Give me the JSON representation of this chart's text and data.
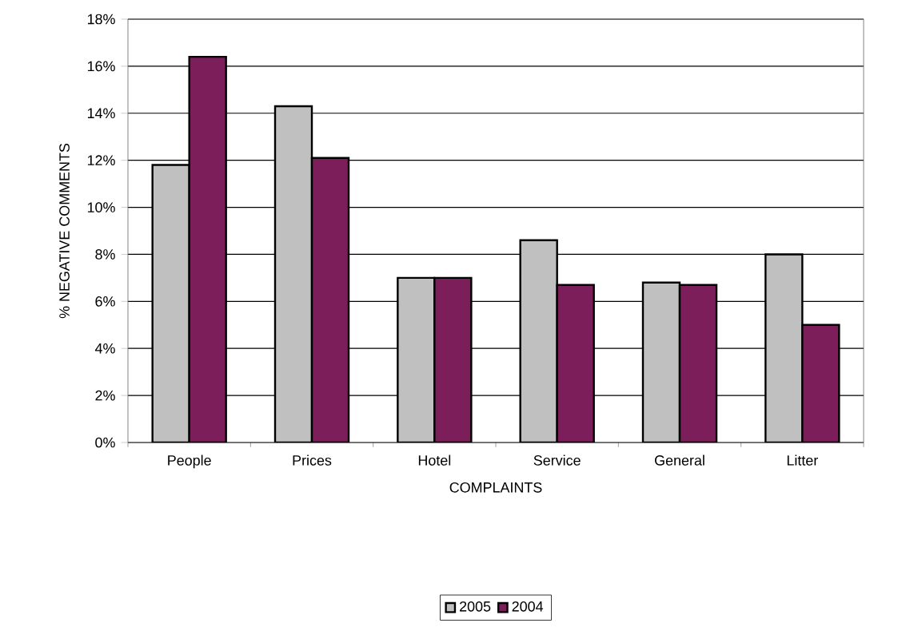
{
  "chart_data": {
    "type": "bar",
    "xlabel": "COMPLAINTS",
    "ylabel": "% NEGATIVE COMMENTS",
    "categories": [
      "People",
      "Prices",
      "Hotel",
      "Service",
      "General",
      "Litter"
    ],
    "series": [
      {
        "name": "2005",
        "color": "#c0c0c0",
        "values": [
          11.8,
          14.3,
          7.0,
          8.6,
          6.8,
          8.0
        ]
      },
      {
        "name": "2004",
        "color": "#7b1e5a",
        "values": [
          16.4,
          12.1,
          7.0,
          6.7,
          6.7,
          5.0
        ]
      }
    ],
    "ylim": [
      0,
      18
    ],
    "yticks": [
      {
        "value": 0,
        "label": "0%"
      },
      {
        "value": 2,
        "label": "2%"
      },
      {
        "value": 4,
        "label": "4%"
      },
      {
        "value": 6,
        "label": "6%"
      },
      {
        "value": 8,
        "label": "8%"
      },
      {
        "value": 10,
        "label": "10%"
      },
      {
        "value": 12,
        "label": "12%"
      },
      {
        "value": 14,
        "label": "14%"
      },
      {
        "value": 16,
        "label": "16%"
      },
      {
        "value": 18,
        "label": "18%"
      }
    ],
    "grid": "y",
    "legend": "bottom"
  }
}
